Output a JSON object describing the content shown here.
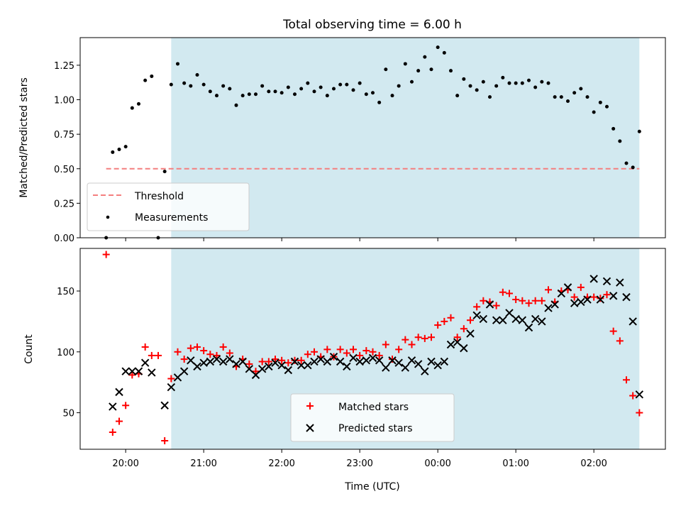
{
  "chart_data": [
    {
      "type": "scatter",
      "title": "Total observing time = 6.00 h",
      "xlabel": "",
      "ylabel": "Matched/Predicted stars",
      "ylim": [
        0,
        1.45
      ],
      "yticks": [
        "0.00",
        "0.25",
        "0.50",
        "0.75",
        "1.00",
        "1.25"
      ],
      "xlim": [
        "19:25",
        "02:55"
      ],
      "shaded_span": [
        "20:35",
        "02:35"
      ],
      "shade_color": "#d2e9f0",
      "legend_position": "lower-left",
      "series": [
        {
          "name": "Threshold",
          "kind": "dashed-line",
          "color": "#f47f7f",
          "x": [
            "19:45",
            "02:35"
          ],
          "y": [
            0.5,
            0.5
          ]
        },
        {
          "name": "Measurements",
          "kind": "dots",
          "color": "#000000",
          "points": [
            [
              "19:45",
              0.0
            ],
            [
              "19:50",
              0.62
            ],
            [
              "19:55",
              0.64
            ],
            [
              "20:00",
              0.66
            ],
            [
              "20:05",
              0.94
            ],
            [
              "20:10",
              0.97
            ],
            [
              "20:15",
              1.14
            ],
            [
              "20:20",
              1.17
            ],
            [
              "20:25",
              0.0
            ],
            [
              "20:30",
              0.48
            ],
            [
              "20:35",
              1.11
            ],
            [
              "20:40",
              1.26
            ],
            [
              "20:45",
              1.12
            ],
            [
              "20:50",
              1.1
            ],
            [
              "20:55",
              1.18
            ],
            [
              "21:00",
              1.11
            ],
            [
              "21:05",
              1.06
            ],
            [
              "21:10",
              1.03
            ],
            [
              "21:15",
              1.1
            ],
            [
              "21:20",
              1.08
            ],
            [
              "21:25",
              0.96
            ],
            [
              "21:30",
              1.03
            ],
            [
              "21:35",
              1.04
            ],
            [
              "21:40",
              1.04
            ],
            [
              "21:45",
              1.1
            ],
            [
              "21:50",
              1.06
            ],
            [
              "21:55",
              1.06
            ],
            [
              "22:00",
              1.05
            ],
            [
              "22:05",
              1.09
            ],
            [
              "22:10",
              1.04
            ],
            [
              "22:15",
              1.08
            ],
            [
              "22:20",
              1.12
            ],
            [
              "22:25",
              1.06
            ],
            [
              "22:30",
              1.09
            ],
            [
              "22:35",
              1.03
            ],
            [
              "22:40",
              1.08
            ],
            [
              "22:45",
              1.11
            ],
            [
              "22:50",
              1.11
            ],
            [
              "22:55",
              1.07
            ],
            [
              "23:00",
              1.12
            ],
            [
              "23:05",
              1.04
            ],
            [
              "23:10",
              1.05
            ],
            [
              "23:15",
              0.98
            ],
            [
              "23:20",
              1.22
            ],
            [
              "23:25",
              1.03
            ],
            [
              "23:30",
              1.1
            ],
            [
              "23:35",
              1.26
            ],
            [
              "23:40",
              1.13
            ],
            [
              "23:45",
              1.21
            ],
            [
              "23:50",
              1.31
            ],
            [
              "23:55",
              1.22
            ],
            [
              "00:00",
              1.38
            ],
            [
              "00:05",
              1.34
            ],
            [
              "00:10",
              1.21
            ],
            [
              "00:15",
              1.03
            ],
            [
              "00:20",
              1.15
            ],
            [
              "00:25",
              1.1
            ],
            [
              "00:30",
              1.07
            ],
            [
              "00:35",
              1.13
            ],
            [
              "00:40",
              1.02
            ],
            [
              "00:45",
              1.1
            ],
            [
              "00:50",
              1.16
            ],
            [
              "00:55",
              1.12
            ],
            [
              "01:00",
              1.12
            ],
            [
              "01:05",
              1.12
            ],
            [
              "01:10",
              1.14
            ],
            [
              "01:15",
              1.09
            ],
            [
              "01:20",
              1.13
            ],
            [
              "01:25",
              1.12
            ],
            [
              "01:30",
              1.02
            ],
            [
              "01:35",
              1.02
            ],
            [
              "01:40",
              0.99
            ],
            [
              "01:45",
              1.05
            ],
            [
              "01:50",
              1.08
            ],
            [
              "01:55",
              1.02
            ],
            [
              "02:00",
              0.91
            ],
            [
              "02:05",
              0.98
            ],
            [
              "02:10",
              0.95
            ],
            [
              "02:15",
              0.79
            ],
            [
              "02:20",
              0.7
            ],
            [
              "02:25",
              0.54
            ],
            [
              "02:30",
              0.51
            ],
            [
              "02:35",
              0.77
            ]
          ]
        }
      ]
    },
    {
      "type": "scatter",
      "title": "",
      "xlabel": "Time (UTC)",
      "ylabel": "Count",
      "ylim": [
        20,
        185
      ],
      "yticks": [
        "50",
        "100",
        "150"
      ],
      "xlim": [
        "19:25",
        "02:55"
      ],
      "xticks": [
        "20:00",
        "21:00",
        "22:00",
        "23:00",
        "00:00",
        "01:00",
        "02:00"
      ],
      "shaded_span": [
        "20:35",
        "02:35"
      ],
      "shade_color": "#d2e9f0",
      "legend_position": "lower-center",
      "series": [
        {
          "name": "Matched stars",
          "kind": "plus",
          "color": "#ff0000",
          "points": [
            [
              "19:45",
              180
            ],
            [
              "19:50",
              34
            ],
            [
              "19:55",
              43
            ],
            [
              "20:00",
              56
            ],
            [
              "20:05",
              81
            ],
            [
              "20:10",
              82
            ],
            [
              "20:15",
              104
            ],
            [
              "20:20",
              97
            ],
            [
              "20:25",
              97
            ],
            [
              "20:30",
              27
            ],
            [
              "20:35",
              78
            ],
            [
              "20:40",
              100
            ],
            [
              "20:45",
              94
            ],
            [
              "20:50",
              103
            ],
            [
              "20:55",
              104
            ],
            [
              "21:00",
              101
            ],
            [
              "21:05",
              98
            ],
            [
              "21:10",
              97
            ],
            [
              "21:15",
              104
            ],
            [
              "21:20",
              99
            ],
            [
              "21:25",
              88
            ],
            [
              "21:30",
              94
            ],
            [
              "21:35",
              90
            ],
            [
              "21:40",
              84
            ],
            [
              "21:45",
              92
            ],
            [
              "21:50",
              92
            ],
            [
              "21:55",
              94
            ],
            [
              "22:00",
              93
            ],
            [
              "22:05",
              91
            ],
            [
              "22:10",
              93
            ],
            [
              "22:15",
              93
            ],
            [
              "22:20",
              98
            ],
            [
              "22:25",
              100
            ],
            [
              "22:30",
              96
            ],
            [
              "22:35",
              102
            ],
            [
              "22:40",
              96
            ],
            [
              "22:45",
              102
            ],
            [
              "22:50",
              99
            ],
            [
              "22:55",
              102
            ],
            [
              "23:00",
              97
            ],
            [
              "23:05",
              101
            ],
            [
              "23:10",
              100
            ],
            [
              "23:15",
              97
            ],
            [
              "23:20",
              106
            ],
            [
              "23:25",
              94
            ],
            [
              "23:30",
              102
            ],
            [
              "23:35",
              110
            ],
            [
              "23:40",
              106
            ],
            [
              "23:45",
              112
            ],
            [
              "23:50",
              111
            ],
            [
              "23:55",
              112
            ],
            [
              "00:00",
              122
            ],
            [
              "00:05",
              125
            ],
            [
              "00:10",
              128
            ],
            [
              "00:15",
              112
            ],
            [
              "00:20",
              119
            ],
            [
              "00:25",
              126
            ],
            [
              "00:30",
              137
            ],
            [
              "00:35",
              142
            ],
            [
              "00:40",
              141
            ],
            [
              "00:45",
              138
            ],
            [
              "00:50",
              149
            ],
            [
              "00:55",
              148
            ],
            [
              "01:00",
              143
            ],
            [
              "01:05",
              142
            ],
            [
              "01:10",
              140
            ],
            [
              "01:15",
              142
            ],
            [
              "01:20",
              142
            ],
            [
              "01:25",
              151
            ],
            [
              "01:30",
              141
            ],
            [
              "01:35",
              150
            ],
            [
              "01:40",
              151
            ],
            [
              "01:45",
              145
            ],
            [
              "01:50",
              153
            ],
            [
              "01:55",
              145
            ],
            [
              "02:00",
              145
            ],
            [
              "02:05",
              144
            ],
            [
              "02:10",
              147
            ],
            [
              "02:15",
              117
            ],
            [
              "02:20",
              109
            ],
            [
              "02:25",
              77
            ],
            [
              "02:30",
              64
            ],
            [
              "02:35",
              50
            ]
          ]
        },
        {
          "name": "Predicted stars",
          "kind": "cross",
          "color": "#000000",
          "points": [
            [
              "19:50",
              55
            ],
            [
              "19:55",
              67
            ],
            [
              "20:00",
              84
            ],
            [
              "20:05",
              84
            ],
            [
              "20:10",
              84
            ],
            [
              "20:15",
              91
            ],
            [
              "20:20",
              83
            ],
            [
              "20:30",
              56
            ],
            [
              "20:35",
              71
            ],
            [
              "20:40",
              79
            ],
            [
              "20:45",
              84
            ],
            [
              "20:50",
              93
            ],
            [
              "20:55",
              88
            ],
            [
              "21:00",
              91
            ],
            [
              "21:05",
              92
            ],
            [
              "21:10",
              94
            ],
            [
              "21:15",
              92
            ],
            [
              "21:20",
              94
            ],
            [
              "21:25",
              90
            ],
            [
              "21:30",
              92
            ],
            [
              "21:35",
              86
            ],
            [
              "21:40",
              81
            ],
            [
              "21:45",
              86
            ],
            [
              "21:50",
              88
            ],
            [
              "21:55",
              91
            ],
            [
              "22:00",
              89
            ],
            [
              "22:05",
              85
            ],
            [
              "22:10",
              92
            ],
            [
              "22:15",
              89
            ],
            [
              "22:20",
              89
            ],
            [
              "22:25",
              92
            ],
            [
              "22:30",
              94
            ],
            [
              "22:35",
              92
            ],
            [
              "22:40",
              96
            ],
            [
              "22:45",
              92
            ],
            [
              "22:50",
              88
            ],
            [
              "22:55",
              95
            ],
            [
              "23:00",
              92
            ],
            [
              "23:05",
              93
            ],
            [
              "23:10",
              95
            ],
            [
              "23:15",
              93
            ],
            [
              "23:20",
              87
            ],
            [
              "23:25",
              93
            ],
            [
              "23:30",
              91
            ],
            [
              "23:35",
              87
            ],
            [
              "23:40",
              93
            ],
            [
              "23:45",
              90
            ],
            [
              "23:50",
              84
            ],
            [
              "23:55",
              92
            ],
            [
              "00:00",
              89
            ],
            [
              "00:05",
              92
            ],
            [
              "00:10",
              106
            ],
            [
              "00:15",
              108
            ],
            [
              "00:20",
              103
            ],
            [
              "00:25",
              115
            ],
            [
              "00:30",
              130
            ],
            [
              "00:35",
              127
            ],
            [
              "00:40",
              139
            ],
            [
              "00:45",
              126
            ],
            [
              "00:50",
              126
            ],
            [
              "00:55",
              132
            ],
            [
              "01:00",
              127
            ],
            [
              "01:05",
              126
            ],
            [
              "01:10",
              120
            ],
            [
              "01:15",
              127
            ],
            [
              "01:20",
              125
            ],
            [
              "01:25",
              136
            ],
            [
              "01:30",
              139
            ],
            [
              "01:35",
              148
            ],
            [
              "01:40",
              153
            ],
            [
              "01:45",
              140
            ],
            [
              "01:50",
              141
            ],
            [
              "01:55",
              143
            ],
            [
              "02:00",
              160
            ],
            [
              "02:05",
              143
            ],
            [
              "02:10",
              158
            ],
            [
              "02:15",
              146
            ],
            [
              "02:20",
              157
            ],
            [
              "02:25",
              145
            ],
            [
              "02:30",
              125
            ],
            [
              "02:35",
              65
            ]
          ]
        }
      ]
    }
  ]
}
